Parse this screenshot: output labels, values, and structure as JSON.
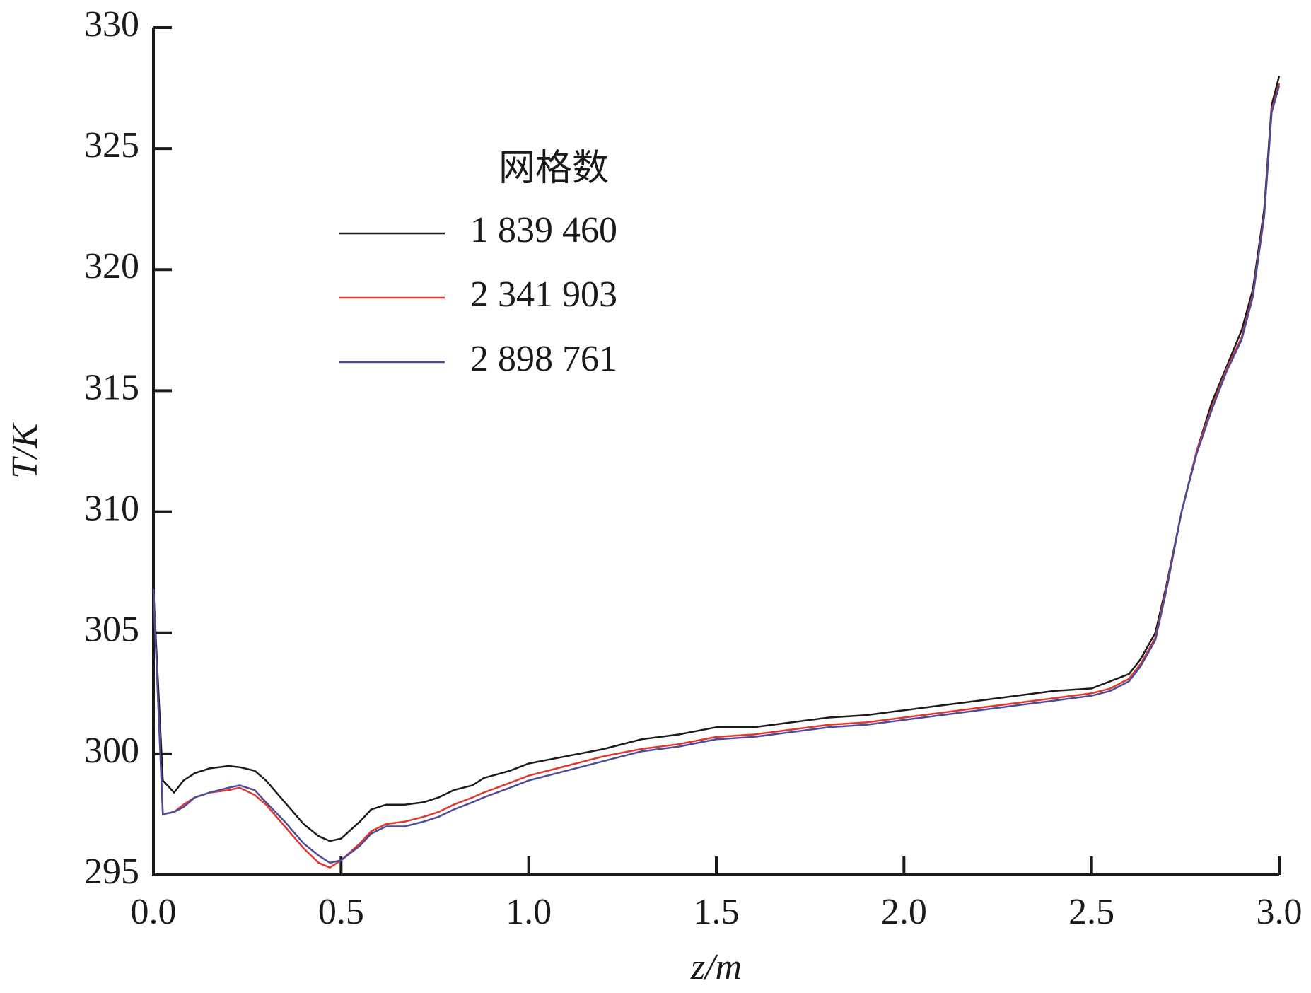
{
  "chart_data": {
    "type": "line",
    "x_label": "z/m",
    "y_label": "T/K",
    "legend_title": "网格数",
    "xlim": [
      0,
      3.0
    ],
    "ylim": [
      295,
      330
    ],
    "xticks": [
      {
        "value": 0,
        "label": "0.0"
      },
      {
        "value": 0.5,
        "label": "0.5"
      },
      {
        "value": 1,
        "label": "1.0"
      },
      {
        "value": 1.5,
        "label": "1.5"
      },
      {
        "value": 2,
        "label": "2.0"
      },
      {
        "value": 2.5,
        "label": "2.5"
      },
      {
        "value": 3,
        "label": "3.0"
      }
    ],
    "yticks": [
      295,
      300,
      305,
      310,
      315,
      320,
      325,
      330
    ],
    "x": [
      0,
      0.025,
      0.055,
      0.08,
      0.11,
      0.15,
      0.2,
      0.23,
      0.27,
      0.3,
      0.35,
      0.4,
      0.44,
      0.47,
      0.5,
      0.55,
      0.58,
      0.62,
      0.67,
      0.72,
      0.76,
      0.8,
      0.85,
      0.88,
      0.95,
      1.0,
      1.1,
      1.2,
      1.3,
      1.4,
      1.5,
      1.6,
      1.7,
      1.8,
      1.9,
      2.0,
      2.1,
      2.2,
      2.3,
      2.4,
      2.5,
      2.55,
      2.6,
      2.63,
      2.67,
      2.7,
      2.74,
      2.78,
      2.82,
      2.86,
      2.9,
      2.93,
      2.96,
      2.98,
      3.0
    ],
    "series": [
      {
        "name": "1 839 460",
        "color": "#1a1a1a",
        "values": [
          306.8,
          298.9,
          298.4,
          298.9,
          299.2,
          299.4,
          299.5,
          299.45,
          299.3,
          298.9,
          298.0,
          297.1,
          296.6,
          296.4,
          296.5,
          297.2,
          297.7,
          297.9,
          297.9,
          298.0,
          298.2,
          298.5,
          298.7,
          299.0,
          299.3,
          299.6,
          299.9,
          300.2,
          300.6,
          300.8,
          301.1,
          301.1,
          301.3,
          301.5,
          301.6,
          301.8,
          302.0,
          302.2,
          302.4,
          302.6,
          302.7,
          303.0,
          303.3,
          303.9,
          305.0,
          307.0,
          310.0,
          312.5,
          314.5,
          316.0,
          317.5,
          319.2,
          322.5,
          326.8,
          328.0
        ]
      },
      {
        "name": "2 341 903",
        "color": "#e0382c",
        "values": [
          306.8,
          297.5,
          297.6,
          297.9,
          298.2,
          298.4,
          298.5,
          298.6,
          298.3,
          297.9,
          297.0,
          296.1,
          295.5,
          295.3,
          295.6,
          296.3,
          296.8,
          297.1,
          297.2,
          297.4,
          297.6,
          297.9,
          298.2,
          298.4,
          298.8,
          299.1,
          299.5,
          299.9,
          300.2,
          300.4,
          300.7,
          300.8,
          301.0,
          301.2,
          301.3,
          301.5,
          301.7,
          301.9,
          302.1,
          302.3,
          302.5,
          302.7,
          303.1,
          303.7,
          304.8,
          306.9,
          310.0,
          312.5,
          314.3,
          315.9,
          317.2,
          319.0,
          322.3,
          326.6,
          327.7
        ]
      },
      {
        "name": "2 898 761",
        "color": "#4b4b9e",
        "values": [
          306.8,
          297.5,
          297.6,
          297.8,
          298.2,
          298.4,
          298.6,
          298.7,
          298.5,
          298.0,
          297.2,
          296.3,
          295.8,
          295.5,
          295.6,
          296.2,
          296.7,
          297.0,
          297.0,
          297.2,
          297.4,
          297.7,
          298.0,
          298.2,
          298.6,
          298.9,
          299.3,
          299.7,
          300.1,
          300.3,
          300.6,
          300.7,
          300.9,
          301.1,
          301.2,
          301.4,
          301.6,
          301.8,
          302.0,
          302.2,
          302.4,
          302.6,
          303.0,
          303.6,
          304.7,
          306.8,
          310.0,
          312.4,
          314.2,
          315.8,
          317.1,
          318.9,
          322.2,
          326.5,
          327.6
        ]
      }
    ]
  }
}
